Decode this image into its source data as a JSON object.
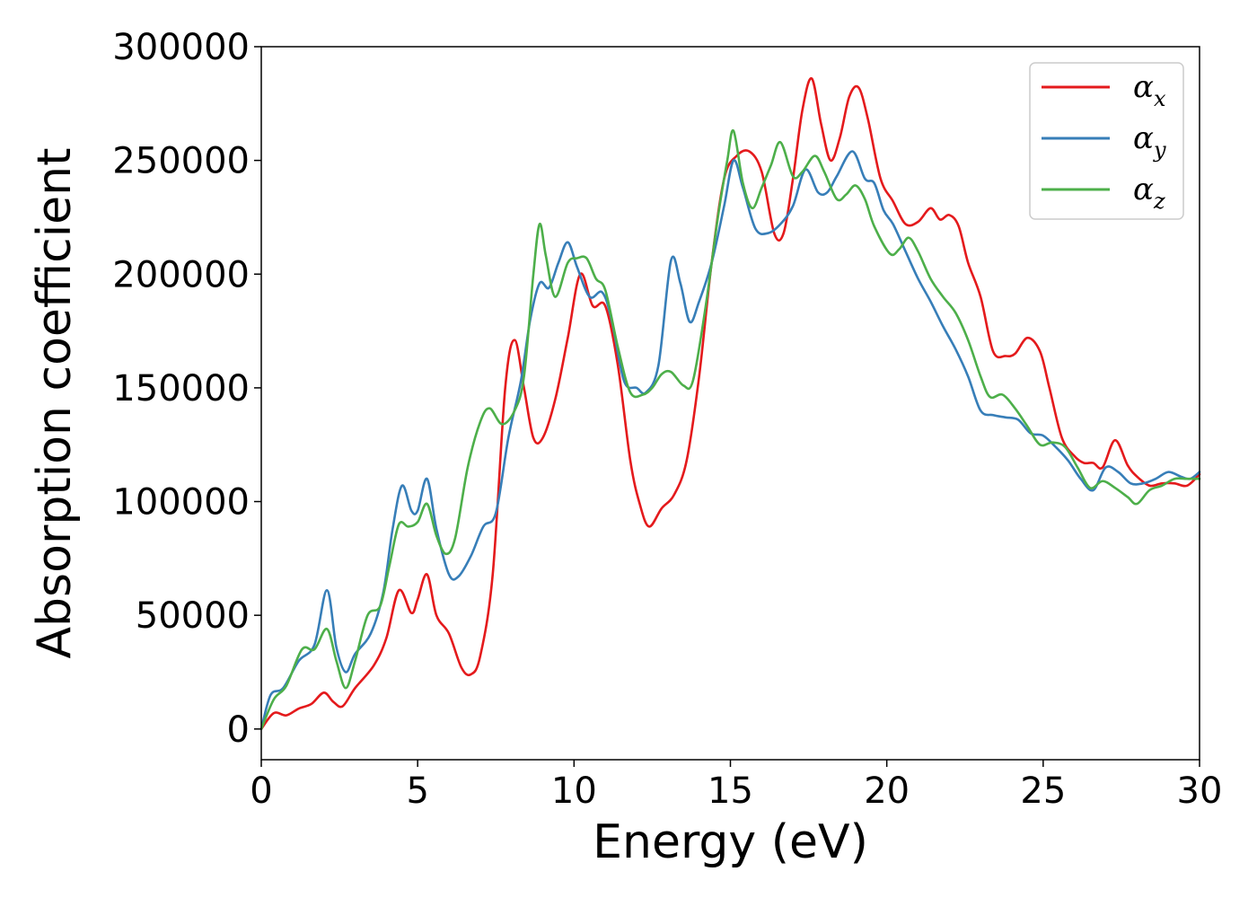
{
  "chart_data": {
    "type": "line",
    "title": "",
    "xlabel": "Energy (eV)",
    "ylabel": "Absorption coefficient",
    "xlim": [
      0,
      30
    ],
    "ylim": [
      -13500,
      300000
    ],
    "xticks": [
      0,
      5,
      10,
      15,
      20,
      25,
      30
    ],
    "xtick_labels": [
      "0",
      "5",
      "10",
      "15",
      "20",
      "25",
      "30"
    ],
    "yticks": [
      0,
      50000,
      100000,
      150000,
      200000,
      250000,
      300000
    ],
    "ytick_labels": [
      "0",
      "50000",
      "100000",
      "150000",
      "200000",
      "250000",
      "300000"
    ],
    "grid": false,
    "legend_position": "top-right",
    "series": [
      {
        "name": "α_x",
        "legend_base": "α",
        "legend_sub": "x",
        "color": "#e41a1c",
        "points": [
          [
            0,
            0
          ],
          [
            0.4,
            7000
          ],
          [
            0.8,
            6000
          ],
          [
            1.2,
            9000
          ],
          [
            1.6,
            11000
          ],
          [
            2.0,
            16000
          ],
          [
            2.3,
            12000
          ],
          [
            2.6,
            10000
          ],
          [
            3.0,
            18000
          ],
          [
            3.6,
            28000
          ],
          [
            4.0,
            40000
          ],
          [
            4.4,
            61000
          ],
          [
            4.8,
            51000
          ],
          [
            5.0,
            57000
          ],
          [
            5.3,
            68000
          ],
          [
            5.6,
            50000
          ],
          [
            6.0,
            42000
          ],
          [
            6.4,
            27000
          ],
          [
            6.7,
            24000
          ],
          [
            7.0,
            32000
          ],
          [
            7.4,
            68000
          ],
          [
            7.8,
            150000
          ],
          [
            8.1,
            171000
          ],
          [
            8.4,
            150000
          ],
          [
            8.7,
            128000
          ],
          [
            9.0,
            128000
          ],
          [
            9.4,
            145000
          ],
          [
            9.8,
            172000
          ],
          [
            10.2,
            200000
          ],
          [
            10.6,
            186000
          ],
          [
            11.0,
            186000
          ],
          [
            11.4,
            160000
          ],
          [
            11.8,
            118000
          ],
          [
            12.1,
            99000
          ],
          [
            12.4,
            89000
          ],
          [
            12.8,
            97000
          ],
          [
            13.2,
            103000
          ],
          [
            13.6,
            118000
          ],
          [
            14.0,
            155000
          ],
          [
            14.4,
            205000
          ],
          [
            14.8,
            242000
          ],
          [
            15.2,
            252000
          ],
          [
            15.6,
            254000
          ],
          [
            16.0,
            245000
          ],
          [
            16.4,
            218000
          ],
          [
            16.7,
            218000
          ],
          [
            17.0,
            242000
          ],
          [
            17.3,
            272000
          ],
          [
            17.6,
            286000
          ],
          [
            17.9,
            266000
          ],
          [
            18.2,
            250000
          ],
          [
            18.5,
            260000
          ],
          [
            18.8,
            278000
          ],
          [
            19.1,
            282000
          ],
          [
            19.4,
            268000
          ],
          [
            19.8,
            242000
          ],
          [
            20.2,
            232000
          ],
          [
            20.6,
            222000
          ],
          [
            21.0,
            223000
          ],
          [
            21.4,
            229000
          ],
          [
            21.7,
            224000
          ],
          [
            22.0,
            226000
          ],
          [
            22.3,
            221000
          ],
          [
            22.6,
            205000
          ],
          [
            23.0,
            190000
          ],
          [
            23.4,
            166000
          ],
          [
            23.8,
            164000
          ],
          [
            24.1,
            165000
          ],
          [
            24.5,
            172000
          ],
          [
            24.9,
            166000
          ],
          [
            25.2,
            150000
          ],
          [
            25.6,
            128000
          ],
          [
            26.0,
            120000
          ],
          [
            26.3,
            117000
          ],
          [
            26.6,
            117000
          ],
          [
            26.9,
            115000
          ],
          [
            27.3,
            127000
          ],
          [
            27.7,
            116000
          ],
          [
            28.0,
            111000
          ],
          [
            28.4,
            107000
          ],
          [
            28.8,
            108000
          ],
          [
            29.2,
            108000
          ],
          [
            29.6,
            107000
          ],
          [
            30,
            112000
          ]
        ]
      },
      {
        "name": "α_y",
        "legend_base": "α",
        "legend_sub": "y",
        "color": "#377eb8",
        "points": [
          [
            0,
            0
          ],
          [
            0.3,
            15000
          ],
          [
            0.7,
            18000
          ],
          [
            1.2,
            30000
          ],
          [
            1.7,
            37000
          ],
          [
            2.1,
            61000
          ],
          [
            2.4,
            36000
          ],
          [
            2.7,
            25000
          ],
          [
            3.0,
            33000
          ],
          [
            3.5,
            42000
          ],
          [
            3.9,
            60000
          ],
          [
            4.2,
            88000
          ],
          [
            4.5,
            107000
          ],
          [
            4.8,
            96000
          ],
          [
            5.0,
            96000
          ],
          [
            5.3,
            110000
          ],
          [
            5.6,
            88000
          ],
          [
            6.0,
            68000
          ],
          [
            6.3,
            67000
          ],
          [
            6.7,
            76000
          ],
          [
            7.1,
            89000
          ],
          [
            7.5,
            95000
          ],
          [
            7.9,
            128000
          ],
          [
            8.3,
            153000
          ],
          [
            8.6,
            180000
          ],
          [
            8.9,
            196000
          ],
          [
            9.2,
            194000
          ],
          [
            9.5,
            205000
          ],
          [
            9.8,
            214000
          ],
          [
            10.1,
            203000
          ],
          [
            10.5,
            190000
          ],
          [
            10.9,
            192000
          ],
          [
            11.2,
            180000
          ],
          [
            11.6,
            153000
          ],
          [
            12.0,
            150000
          ],
          [
            12.3,
            148000
          ],
          [
            12.7,
            160000
          ],
          [
            13.1,
            206000
          ],
          [
            13.4,
            196000
          ],
          [
            13.7,
            179000
          ],
          [
            14.0,
            188000
          ],
          [
            14.4,
            205000
          ],
          [
            14.8,
            230000
          ],
          [
            15.1,
            250000
          ],
          [
            15.4,
            238000
          ],
          [
            15.8,
            220000
          ],
          [
            16.2,
            218000
          ],
          [
            16.6,
            222000
          ],
          [
            17.0,
            230000
          ],
          [
            17.4,
            246000
          ],
          [
            17.8,
            236000
          ],
          [
            18.1,
            236000
          ],
          [
            18.4,
            243000
          ],
          [
            18.9,
            254000
          ],
          [
            19.3,
            242000
          ],
          [
            19.6,
            240000
          ],
          [
            19.9,
            228000
          ],
          [
            20.2,
            222000
          ],
          [
            20.6,
            210000
          ],
          [
            21.0,
            198000
          ],
          [
            21.4,
            188000
          ],
          [
            21.8,
            177000
          ],
          [
            22.2,
            167000
          ],
          [
            22.6,
            155000
          ],
          [
            23.0,
            140000
          ],
          [
            23.4,
            138000
          ],
          [
            23.8,
            137000
          ],
          [
            24.2,
            136000
          ],
          [
            24.6,
            130000
          ],
          [
            25.0,
            129000
          ],
          [
            25.4,
            124000
          ],
          [
            25.8,
            118000
          ],
          [
            26.2,
            110000
          ],
          [
            26.6,
            105000
          ],
          [
            27.0,
            115000
          ],
          [
            27.4,
            113000
          ],
          [
            27.8,
            108000
          ],
          [
            28.2,
            108000
          ],
          [
            28.6,
            110000
          ],
          [
            29.0,
            113000
          ],
          [
            29.4,
            111000
          ],
          [
            29.7,
            110000
          ],
          [
            30,
            113000
          ]
        ]
      },
      {
        "name": "α_z",
        "legend_base": "α",
        "legend_sub": "z",
        "color": "#4daf4a",
        "points": [
          [
            0,
            0
          ],
          [
            0.4,
            13000
          ],
          [
            0.8,
            19000
          ],
          [
            1.3,
            35000
          ],
          [
            1.7,
            35000
          ],
          [
            2.1,
            44000
          ],
          [
            2.4,
            30000
          ],
          [
            2.7,
            18000
          ],
          [
            3.0,
            30000
          ],
          [
            3.4,
            50000
          ],
          [
            3.8,
            54000
          ],
          [
            4.1,
            72000
          ],
          [
            4.4,
            90000
          ],
          [
            4.7,
            89000
          ],
          [
            5.0,
            91000
          ],
          [
            5.3,
            99000
          ],
          [
            5.6,
            85000
          ],
          [
            5.9,
            77000
          ],
          [
            6.2,
            84000
          ],
          [
            6.6,
            115000
          ],
          [
            7.0,
            135000
          ],
          [
            7.3,
            141000
          ],
          [
            7.7,
            134000
          ],
          [
            8.1,
            140000
          ],
          [
            8.4,
            155000
          ],
          [
            8.7,
            200000
          ],
          [
            8.9,
            222000
          ],
          [
            9.1,
            208000
          ],
          [
            9.4,
            190000
          ],
          [
            9.8,
            205000
          ],
          [
            10.1,
            207000
          ],
          [
            10.4,
            207000
          ],
          [
            10.7,
            198000
          ],
          [
            11.0,
            193000
          ],
          [
            11.4,
            168000
          ],
          [
            11.8,
            148000
          ],
          [
            12.2,
            147000
          ],
          [
            12.5,
            150000
          ],
          [
            12.8,
            156000
          ],
          [
            13.1,
            157000
          ],
          [
            13.5,
            151000
          ],
          [
            13.8,
            153000
          ],
          [
            14.2,
            185000
          ],
          [
            14.6,
            225000
          ],
          [
            14.9,
            250000
          ],
          [
            15.1,
            263000
          ],
          [
            15.4,
            240000
          ],
          [
            15.7,
            229000
          ],
          [
            16.0,
            238000
          ],
          [
            16.3,
            248000
          ],
          [
            16.6,
            258000
          ],
          [
            17.0,
            243000
          ],
          [
            17.3,
            245000
          ],
          [
            17.7,
            252000
          ],
          [
            18.0,
            245000
          ],
          [
            18.4,
            233000
          ],
          [
            18.7,
            235000
          ],
          [
            19.0,
            239000
          ],
          [
            19.3,
            233000
          ],
          [
            19.6,
            221000
          ],
          [
            20.1,
            209000
          ],
          [
            20.4,
            211000
          ],
          [
            20.7,
            216000
          ],
          [
            21.0,
            210000
          ],
          [
            21.4,
            198000
          ],
          [
            21.8,
            190000
          ],
          [
            22.2,
            183000
          ],
          [
            22.6,
            171000
          ],
          [
            23.0,
            155000
          ],
          [
            23.3,
            146000
          ],
          [
            23.7,
            147000
          ],
          [
            24.1,
            141000
          ],
          [
            24.5,
            133000
          ],
          [
            24.9,
            125000
          ],
          [
            25.3,
            126000
          ],
          [
            25.7,
            124000
          ],
          [
            26.1,
            115000
          ],
          [
            26.5,
            106000
          ],
          [
            26.9,
            109000
          ],
          [
            27.3,
            106000
          ],
          [
            27.7,
            102000
          ],
          [
            28.0,
            99000
          ],
          [
            28.4,
            105000
          ],
          [
            28.8,
            107000
          ],
          [
            29.2,
            110000
          ],
          [
            29.6,
            110000
          ],
          [
            30,
            110000
          ]
        ]
      }
    ]
  }
}
